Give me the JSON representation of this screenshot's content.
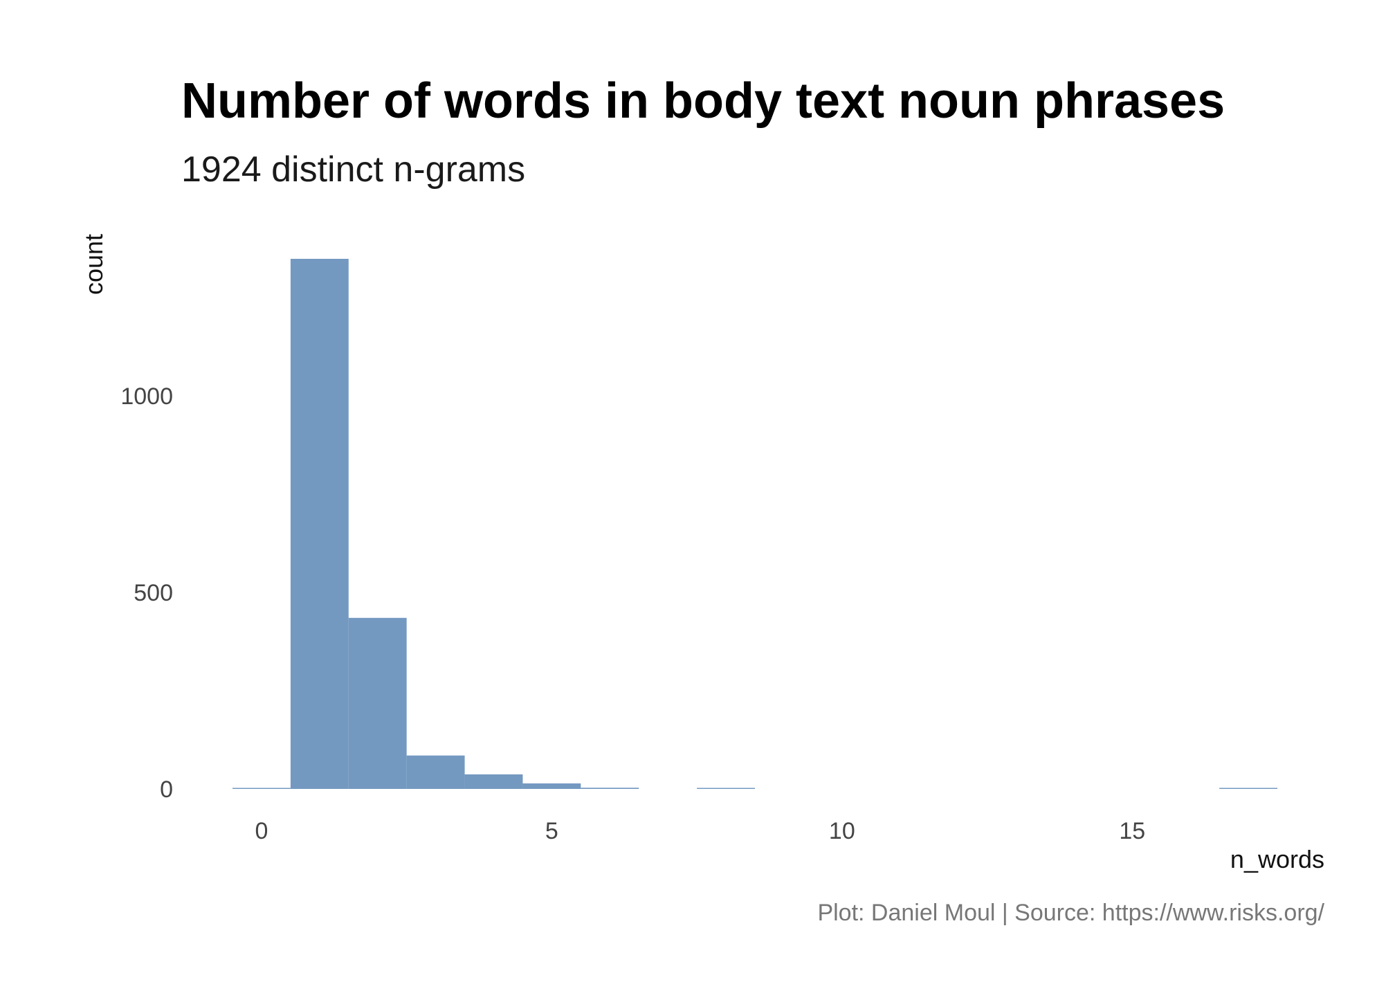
{
  "chart_data": {
    "type": "bar",
    "title": "Number of words in body text noun phrases",
    "subtitle": "1924 distinct n-grams",
    "xlabel": "n_words",
    "ylabel": "count",
    "caption": "Plot: Daniel Moul | Source: https://www.risks.org/",
    "x": [
      0,
      1,
      2,
      3,
      4,
      5,
      6,
      7,
      8,
      9,
      10,
      11,
      12,
      13,
      14,
      15,
      16,
      17
    ],
    "values": [
      2,
      1348,
      435,
      85,
      37,
      14,
      3,
      0,
      1,
      0,
      0,
      0,
      0,
      0,
      0,
      0,
      0,
      1
    ],
    "xlim": [
      -0.5,
      17.5
    ],
    "ylim": [
      0,
      1348
    ],
    "x_ticks": [
      0,
      5,
      10,
      15
    ],
    "y_ticks": [
      0,
      500,
      1000
    ],
    "grid": false,
    "legend": "none",
    "bar_color": "#7499C1"
  }
}
